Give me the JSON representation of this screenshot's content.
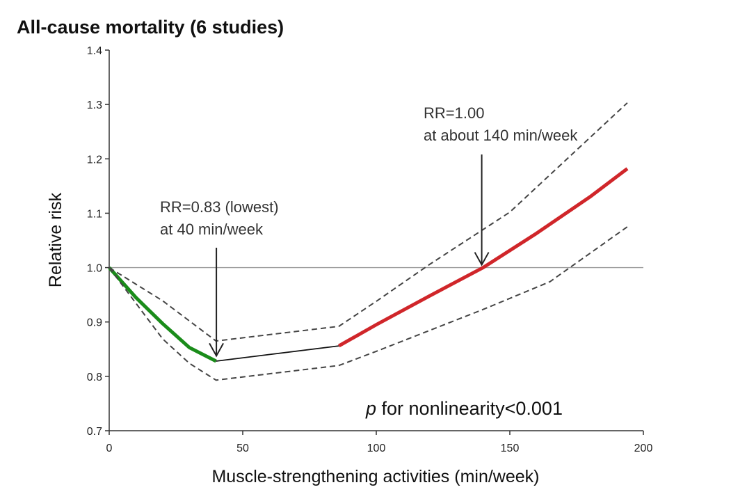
{
  "chart_data": {
    "type": "line",
    "title": "All-cause mortality (6 studies)",
    "xlabel": "Muscle-strengthening activities (min/week)",
    "ylabel": "Relative risk",
    "xlim": [
      0,
      200
    ],
    "ylim": [
      0.7,
      1.4
    ],
    "xticks": [
      "0",
      "50",
      "100",
      "150",
      "200"
    ],
    "yticks": [
      "0.7",
      "0.8",
      "0.9",
      "1.0",
      "1.1",
      "1.2",
      "1.3",
      "1.4"
    ],
    "reference_line": 1.0,
    "series": [
      {
        "name": "RR (decreasing risk)",
        "color": "#1a8c1a",
        "style": "solid-thick",
        "x": [
          0,
          10,
          20,
          30,
          40
        ],
        "y": [
          1.0,
          0.945,
          0.897,
          0.853,
          0.828
        ]
      },
      {
        "name": "RR (non-significant)",
        "color": "#111111",
        "style": "solid-thin",
        "x": [
          40,
          86
        ],
        "y": [
          0.828,
          0.856
        ]
      },
      {
        "name": "RR (increasing risk)",
        "color": "#d0262a",
        "style": "solid-thick",
        "x": [
          86,
          100,
          120,
          140,
          160,
          180,
          194
        ],
        "y": [
          0.856,
          0.895,
          0.948,
          1.0,
          1.063,
          1.13,
          1.182
        ]
      },
      {
        "name": "Upper 95% CI",
        "color": "#444444",
        "style": "dashed",
        "x": [
          0,
          20,
          40,
          86,
          100,
          120,
          140,
          150,
          194
        ],
        "y": [
          1.0,
          0.939,
          0.865,
          0.892,
          0.938,
          1.006,
          1.07,
          1.102,
          1.303
        ]
      },
      {
        "name": "Lower 95% CI",
        "color": "#444444",
        "style": "dashed",
        "x": [
          0,
          20,
          30,
          40,
          86,
          100,
          140,
          165,
          194
        ],
        "y": [
          1.0,
          0.869,
          0.824,
          0.793,
          0.82,
          0.846,
          0.923,
          0.974,
          1.075
        ]
      }
    ],
    "annotations": [
      {
        "line1": "RR=0.83 (lowest)",
        "line2": "at 40 min/week",
        "arrow_x": 40,
        "arrow_y": 0.83
      },
      {
        "line1": "RR=1.00",
        "line2": "at about 140 min/week",
        "arrow_x": 140,
        "arrow_y": 1.0
      }
    ],
    "pvalue": {
      "p": "p",
      "text": " for nonlinearity<0.001"
    }
  }
}
